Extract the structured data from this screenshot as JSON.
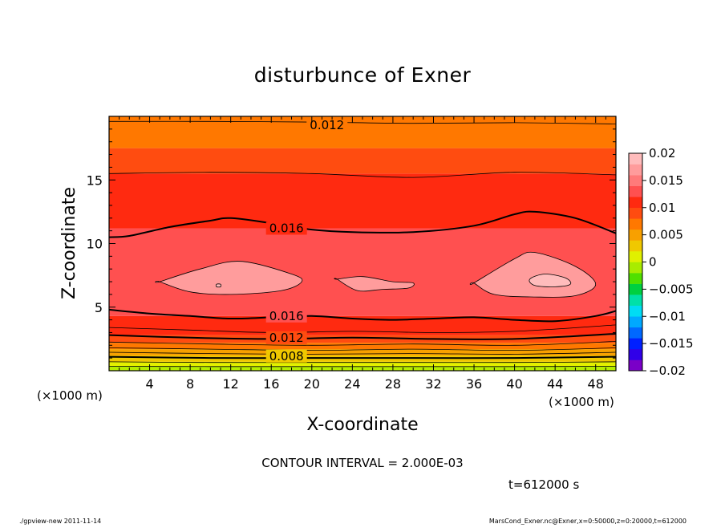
{
  "chart_data": {
    "type": "contour",
    "title": "disturbunce of Exner",
    "xlabel": "X-coordinate",
    "ylabel": "Z-coordinate",
    "x_unit_label": "(×1000 m)",
    "y_unit_label": "(×1000 m)",
    "xlim": [
      0,
      50
    ],
    "ylim": [
      0,
      20
    ],
    "x_ticks": [
      4,
      8,
      12,
      16,
      20,
      24,
      28,
      32,
      36,
      40,
      44,
      48
    ],
    "y_ticks": [
      5,
      10,
      15
    ],
    "contour_interval_text": "CONTOUR INTERVAL = 2.000E-03",
    "time_text": "t=612000 s",
    "colorbar": {
      "ticks": [
        "0.02",
        "0.015",
        "0.01",
        "0.005",
        "0",
        "−0.005",
        "−0.01",
        "−0.015",
        "−0.02"
      ],
      "range": [
        -0.02,
        0.02
      ],
      "colors": [
        "#7a00c8",
        "#3000e8",
        "#0020ff",
        "#0068ff",
        "#00a8ff",
        "#00dcf4",
        "#00e0a8",
        "#00d040",
        "#50e000",
        "#a8ec00",
        "#e0f000",
        "#f0c800",
        "#f8a000",
        "#ff7800",
        "#ff4c10",
        "#ff2a10",
        "#ff5050",
        "#ff7a7a",
        "#ff9c9c",
        "#ffbcbc"
      ]
    },
    "contour_labels": [
      {
        "text": "0.012",
        "x": 21.5,
        "z": 19.3
      },
      {
        "text": "0.016",
        "x": 17.5,
        "z": 11.2
      },
      {
        "text": "0.016",
        "x": 17.5,
        "z": 4.3
      },
      {
        "text": "0.012",
        "x": 17.5,
        "z": 2.6
      },
      {
        "text": "0.008",
        "x": 17.5,
        "z": 1.15
      }
    ],
    "bands": [
      {
        "z_bottom": 0.0,
        "z_top": 0.35,
        "color": "#b4ec00"
      },
      {
        "z_bottom": 0.35,
        "z_top": 0.7,
        "color": "#e4f000"
      },
      {
        "z_bottom": 0.7,
        "z_top": 1.2,
        "color": "#f0c800"
      },
      {
        "z_bottom": 1.2,
        "z_top": 1.7,
        "color": "#f8a000"
      },
      {
        "z_bottom": 1.7,
        "z_top": 2.2,
        "color": "#ff7800"
      },
      {
        "z_bottom": 2.2,
        "z_top": 2.8,
        "color": "#ff4c10"
      },
      {
        "z_bottom": 2.8,
        "z_top": 4.3,
        "color": "#ff2a10"
      },
      {
        "z_bottom": 4.3,
        "z_top": 11.2,
        "color": "#ff5050"
      },
      {
        "z_bottom": 11.2,
        "z_top": 15.5,
        "color": "#ff2a10"
      },
      {
        "z_bottom": 15.5,
        "z_top": 17.5,
        "color": "#ff4c10"
      },
      {
        "z_bottom": 17.5,
        "z_top": 20.0,
        "color": "#ff7800"
      }
    ],
    "highlight_regions": [
      {
        "name": "core-left",
        "color": "#ff9c9c",
        "x": [
          5,
          9,
          13,
          18,
          19,
          17,
          12,
          8,
          5
        ],
        "z": [
          7.0,
          8.0,
          8.6,
          7.6,
          7.0,
          6.3,
          6.0,
          6.2,
          7.0
        ]
      },
      {
        "name": "core-mid",
        "color": "#ff9c9c",
        "x": [
          22.5,
          25,
          28,
          30,
          29.5,
          27,
          24.5,
          22.5
        ],
        "z": [
          7.2,
          7.4,
          7.0,
          6.9,
          6.5,
          6.4,
          6.3,
          7.2
        ]
      },
      {
        "name": "core-right",
        "color": "#ff9c9c",
        "x": [
          36,
          40,
          42,
          46,
          48,
          46,
          42,
          38,
          36
        ],
        "z": [
          6.9,
          8.8,
          9.3,
          8.2,
          6.8,
          5.9,
          5.8,
          6.0,
          6.9
        ]
      },
      {
        "name": "core-right-inner",
        "color": "#ffbcbc",
        "x": [
          41.5,
          43,
          45,
          45.5,
          44,
          42
        ],
        "z": [
          7.2,
          7.6,
          7.3,
          6.8,
          6.6,
          6.7
        ]
      },
      {
        "name": "core-left-inner",
        "color": "#ffbcbc",
        "x": [
          10.6,
          11.0,
          11.0,
          10.6
        ],
        "z": [
          6.8,
          6.8,
          6.6,
          6.6
        ]
      }
    ],
    "contour_lines": [
      {
        "level": "0.016",
        "bold": true,
        "x": [
          0,
          2,
          6,
          10,
          12,
          16,
          20,
          24,
          30,
          36,
          40,
          42,
          46,
          50
        ],
        "z": [
          10.5,
          10.6,
          11.3,
          11.8,
          12.0,
          11.6,
          11.1,
          10.9,
          10.9,
          11.4,
          12.3,
          12.5,
          12.0,
          10.8
        ]
      },
      {
        "level": "0.016",
        "bold": true,
        "x": [
          0,
          4,
          8,
          12,
          16,
          20,
          24,
          28,
          32,
          36,
          40,
          44,
          48,
          50
        ],
        "z": [
          4.8,
          4.5,
          4.3,
          4.1,
          4.2,
          4.3,
          4.1,
          4.0,
          4.1,
          4.2,
          4.0,
          3.9,
          4.3,
          4.7
        ]
      },
      {
        "level": "0.015",
        "bold": false,
        "x": [
          0,
          10,
          20,
          30,
          40,
          50
        ],
        "z": [
          15.5,
          15.6,
          15.5,
          15.2,
          15.6,
          15.4
        ]
      },
      {
        "level": "0.013",
        "bold": false,
        "x": [
          0,
          10,
          20,
          30,
          40,
          50
        ],
        "z": [
          19.6,
          19.6,
          19.55,
          19.45,
          19.5,
          19.4
        ]
      },
      {
        "level": "0.015",
        "bold": false,
        "x": [
          0,
          8,
          16,
          24,
          32,
          40,
          50
        ],
        "z": [
          3.4,
          3.2,
          3.0,
          3.1,
          3.0,
          3.1,
          3.6
        ]
      },
      {
        "level": "0.012",
        "bold": true,
        "x": [
          0,
          8,
          16,
          24,
          32,
          40,
          50
        ],
        "z": [
          2.8,
          2.6,
          2.5,
          2.6,
          2.5,
          2.5,
          2.9
        ]
      },
      {
        "level": "0.011",
        "bold": false,
        "x": [
          0,
          10,
          20,
          30,
          40,
          50
        ],
        "z": [
          2.25,
          2.1,
          2.0,
          2.1,
          2.0,
          2.3
        ]
      },
      {
        "level": "0.01",
        "bold": false,
        "x": [
          0,
          10,
          20,
          30,
          40,
          50
        ],
        "z": [
          1.8,
          1.7,
          1.6,
          1.7,
          1.6,
          1.8
        ]
      },
      {
        "level": "0.009",
        "bold": false,
        "x": [
          0,
          10,
          20,
          30,
          40,
          50
        ],
        "z": [
          1.45,
          1.35,
          1.3,
          1.35,
          1.3,
          1.45
        ]
      },
      {
        "level": "0.008",
        "bold": true,
        "x": [
          0,
          10,
          20,
          30,
          40,
          50
        ],
        "z": [
          1.1,
          1.0,
          1.0,
          1.0,
          1.0,
          1.1
        ]
      },
      {
        "level": "0.007",
        "bold": false,
        "x": [
          0,
          10,
          20,
          30,
          40,
          50
        ],
        "z": [
          0.7,
          0.65,
          0.65,
          0.65,
          0.65,
          0.7
        ]
      },
      {
        "level": "0.006",
        "bold": false,
        "x": [
          0,
          10,
          20,
          30,
          40,
          50
        ],
        "z": [
          0.35,
          0.33,
          0.33,
          0.33,
          0.33,
          0.35
        ]
      }
    ]
  },
  "footer": {
    "left": "./gpview-new   2011-11-14",
    "right": "MarsCond_Exner.nc@Exner,x=0:50000,z=0:20000,t=612000"
  }
}
